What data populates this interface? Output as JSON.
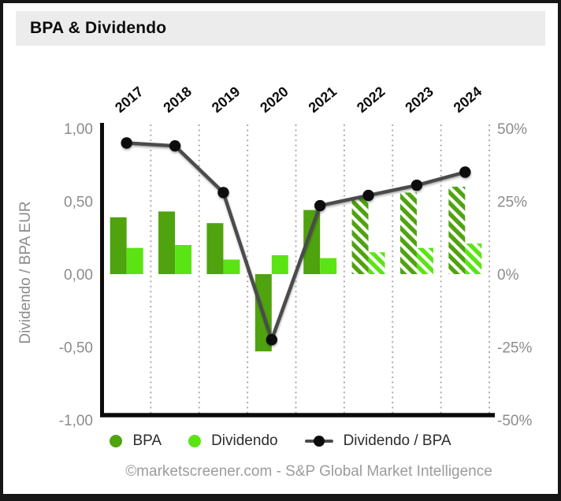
{
  "window": {
    "title": "BPA & Dividendo"
  },
  "chart_data": {
    "type": "bar",
    "title": "BPA & Dividendo",
    "categories": [
      "2017",
      "2018",
      "2019",
      "2020",
      "2021",
      "2022",
      "2023",
      "2024"
    ],
    "estimate_categories": [
      "2022",
      "2023",
      "2024"
    ],
    "series": [
      {
        "name": "BPA",
        "type": "bar",
        "axis": "left",
        "unit": "EUR",
        "color": "#4fa30f",
        "values": [
          0.39,
          0.43,
          0.35,
          -0.53,
          0.44,
          0.52,
          0.56,
          0.6
        ]
      },
      {
        "name": "Dividendo",
        "type": "bar",
        "axis": "left",
        "unit": "EUR",
        "color": "#5be414",
        "values": [
          0.18,
          0.2,
          0.1,
          0.13,
          0.11,
          0.15,
          0.18,
          0.21
        ]
      },
      {
        "name": "Dividendo / BPA",
        "type": "line",
        "axis": "right",
        "unit": "%",
        "color": "#4b4b4b",
        "point_color": "#0c0c0c",
        "values": [
          45,
          44,
          28,
          -22.5,
          23.5,
          27,
          30.5,
          35
        ]
      }
    ],
    "left_axis": {
      "title": "Dividendo / BPA EUR",
      "ticks": [
        "1,00",
        "0,50",
        "0,00",
        "-0,50",
        "-1,00"
      ],
      "tick_values": [
        1,
        0.5,
        0,
        -0.5,
        -1
      ],
      "range": [
        -1,
        1
      ]
    },
    "right_axis": {
      "ticks": [
        "50%",
        "25%",
        "0%",
        "-25%",
        "-50%"
      ],
      "tick_values": [
        50,
        25,
        0,
        -25,
        -50
      ],
      "range": [
        -50,
        50
      ]
    },
    "grid": "vertical-dotted",
    "legend_position": "bottom"
  },
  "legend": {
    "items": [
      {
        "label": "BPA",
        "swatch": "dot",
        "color": "#4fa30f"
      },
      {
        "label": "Dividendo",
        "swatch": "dot",
        "color": "#5be414"
      },
      {
        "label": "Dividendo / BPA",
        "swatch": "line-dot",
        "color": "#4b4b4b"
      }
    ]
  },
  "footer": {
    "credit": "©marketscreener.com - S&P Global Market Intelligence"
  }
}
